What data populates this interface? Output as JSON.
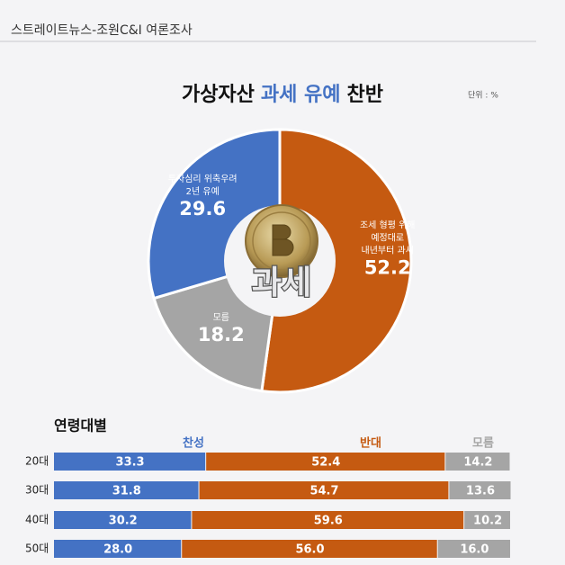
{
  "header": {
    "source": "스트레이트뉴스-조원C&I 여론조사"
  },
  "chart_data": [
    {
      "type": "donut",
      "title_parts": [
        "가상자산",
        "과세 유예",
        "찬반"
      ],
      "unit": "단위 : %",
      "center_text": "과세",
      "values": [
        52.2,
        18.2,
        29.6
      ],
      "labels": [
        [
          "조세 형평 위해",
          "예정대로",
          "내년부터 과세"
        ],
        [
          "모름"
        ],
        [
          "투자심리 위축우려",
          "2년 유예"
        ]
      ],
      "colors": [
        "#c55a11",
        "#a5a5a5",
        "#4472c4"
      ]
    },
    {
      "type": "stacked-bar-horizontal",
      "title": "연령대별",
      "categories": [
        "20대",
        "30대",
        "40대",
        "50대"
      ],
      "xlim": [
        0,
        100
      ],
      "series": [
        {
          "name": "찬성",
          "color": "#4472c4",
          "values": [
            33.3,
            31.8,
            30.2,
            28.0
          ],
          "value_labels": [
            "33.3",
            "31.8",
            "30.2",
            "28.0"
          ]
        },
        {
          "name": "반대",
          "color": "#c55a11",
          "values": [
            52.4,
            54.7,
            59.6,
            56.0
          ],
          "value_labels": [
            "52.4",
            "54.7",
            "59.6",
            "56.0"
          ]
        },
        {
          "name": "모름",
          "color": "#a5a5a5",
          "values": [
            14.2,
            13.6,
            10.2,
            16.0
          ],
          "value_labels": [
            "14.2",
            "13.6",
            "10.2",
            "16.0"
          ]
        }
      ]
    }
  ]
}
